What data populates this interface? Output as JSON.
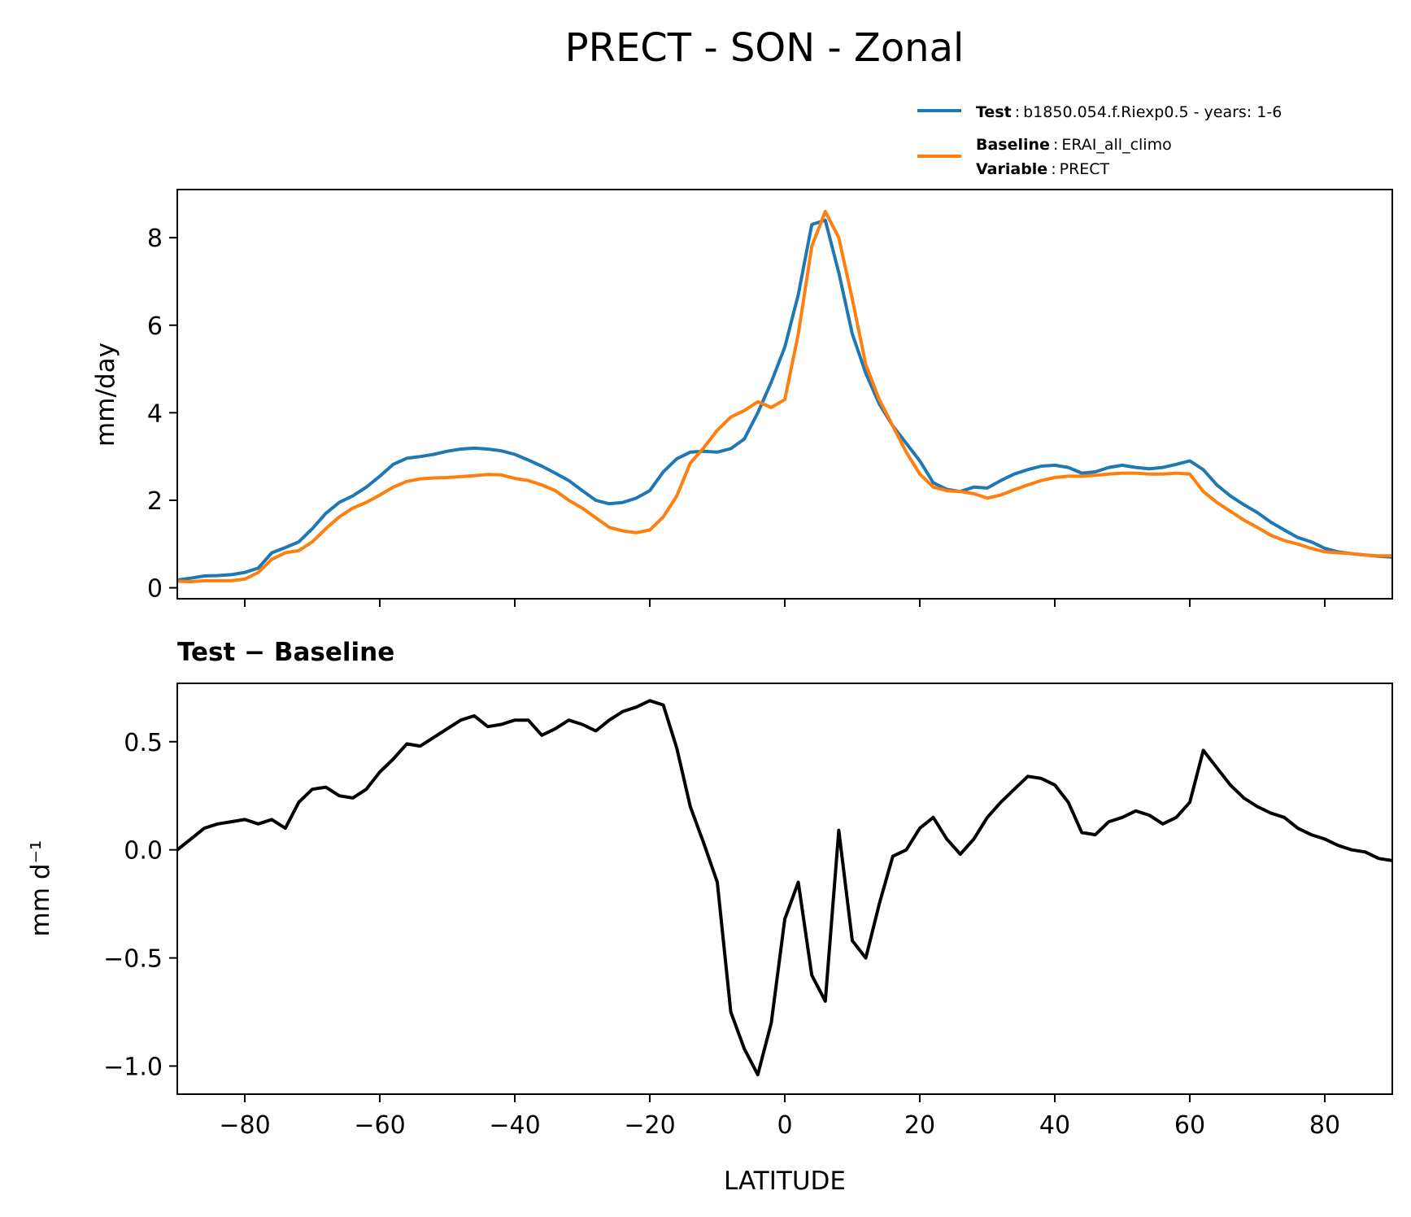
{
  "chart_data": [
    {
      "type": "line",
      "title": "PRECT - SON - Zonal",
      "ylabel": "mm/day",
      "xlim": [
        -90,
        90
      ],
      "ylim": [
        -0.25,
        9.1
      ],
      "yticks": [
        0,
        2,
        4,
        6,
        8
      ],
      "grid": false,
      "legend_position": "top-right, above plot",
      "legend": [
        {
          "series": "test",
          "bold": "Test",
          "text": "b1850.054.f.Riexp0.5 - years: 1-6"
        },
        {
          "series": "baseline",
          "bold": "Baseline",
          "text": "ERAI_all_climo"
        },
        {
          "series": null,
          "bold": "Variable",
          "text": "PRECT"
        }
      ],
      "series": [
        {
          "id": "test",
          "color": "#1f77b4",
          "x": [
            -90,
            -88,
            -86,
            -84,
            -82,
            -80,
            -78,
            -76,
            -74,
            -72,
            -70,
            -68,
            -66,
            -64,
            -62,
            -60,
            -58,
            -56,
            -54,
            -52,
            -50,
            -48,
            -46,
            -44,
            -42,
            -40,
            -38,
            -36,
            -34,
            -32,
            -30,
            -28,
            -26,
            -24,
            -22,
            -20,
            -18,
            -16,
            -14,
            -12,
            -10,
            -8,
            -6,
            -4,
            -2,
            0,
            2,
            4,
            6,
            8,
            10,
            12,
            14,
            16,
            18,
            20,
            22,
            24,
            26,
            28,
            30,
            32,
            34,
            36,
            38,
            40,
            42,
            44,
            46,
            48,
            50,
            52,
            54,
            56,
            58,
            60,
            62,
            64,
            66,
            68,
            70,
            72,
            74,
            76,
            78,
            80,
            82,
            84,
            86,
            88,
            90
          ],
          "values": [
            0.18,
            0.22,
            0.27,
            0.28,
            0.3,
            0.35,
            0.45,
            0.8,
            0.92,
            1.05,
            1.35,
            1.7,
            1.95,
            2.1,
            2.3,
            2.55,
            2.82,
            2.96,
            3.0,
            3.05,
            3.12,
            3.17,
            3.19,
            3.17,
            3.13,
            3.05,
            2.92,
            2.78,
            2.62,
            2.45,
            2.22,
            2.0,
            1.92,
            1.95,
            2.05,
            2.22,
            2.65,
            2.95,
            3.1,
            3.12,
            3.1,
            3.18,
            3.4,
            4.0,
            4.7,
            5.5,
            6.7,
            8.3,
            8.4,
            7.2,
            5.8,
            4.9,
            4.2,
            3.7,
            3.3,
            2.9,
            2.4,
            2.25,
            2.2,
            2.3,
            2.28,
            2.45,
            2.6,
            2.7,
            2.78,
            2.8,
            2.75,
            2.62,
            2.65,
            2.75,
            2.8,
            2.75,
            2.72,
            2.75,
            2.82,
            2.9,
            2.7,
            2.35,
            2.1,
            1.9,
            1.72,
            1.5,
            1.32,
            1.15,
            1.05,
            0.9,
            0.82,
            0.78,
            0.75,
            0.72,
            0.7
          ]
        },
        {
          "id": "baseline",
          "color": "#ff7f0e",
          "x": [
            -90,
            -88,
            -86,
            -84,
            -82,
            -80,
            -78,
            -76,
            -74,
            -72,
            -70,
            -68,
            -66,
            -64,
            -62,
            -60,
            -58,
            -56,
            -54,
            -52,
            -50,
            -48,
            -46,
            -44,
            -42,
            -40,
            -38,
            -36,
            -34,
            -32,
            -30,
            -28,
            -26,
            -24,
            -22,
            -20,
            -18,
            -16,
            -14,
            -12,
            -10,
            -8,
            -6,
            -4,
            -2,
            0,
            2,
            4,
            6,
            8,
            10,
            12,
            14,
            16,
            18,
            20,
            22,
            24,
            26,
            28,
            30,
            32,
            34,
            36,
            38,
            40,
            42,
            44,
            46,
            48,
            50,
            52,
            54,
            56,
            58,
            60,
            62,
            64,
            66,
            68,
            70,
            72,
            74,
            76,
            78,
            80,
            82,
            84,
            86,
            88,
            90
          ],
          "values": [
            0.15,
            0.14,
            0.16,
            0.16,
            0.16,
            0.2,
            0.35,
            0.65,
            0.8,
            0.85,
            1.05,
            1.35,
            1.62,
            1.82,
            1.95,
            2.12,
            2.3,
            2.43,
            2.49,
            2.51,
            2.52,
            2.54,
            2.56,
            2.59,
            2.58,
            2.5,
            2.45,
            2.35,
            2.22,
            2.0,
            1.82,
            1.6,
            1.38,
            1.3,
            1.26,
            1.32,
            1.62,
            2.1,
            2.85,
            3.2,
            3.6,
            3.9,
            4.05,
            4.25,
            4.12,
            4.3,
            5.8,
            7.8,
            8.6,
            8.0,
            6.6,
            5.1,
            4.3,
            3.7,
            3.1,
            2.6,
            2.3,
            2.22,
            2.2,
            2.15,
            2.05,
            2.12,
            2.24,
            2.35,
            2.45,
            2.52,
            2.55,
            2.55,
            2.57,
            2.6,
            2.62,
            2.62,
            2.6,
            2.6,
            2.62,
            2.6,
            2.2,
            1.95,
            1.75,
            1.55,
            1.38,
            1.2,
            1.08,
            1.0,
            0.9,
            0.82,
            0.8,
            0.78,
            0.75,
            0.73,
            0.73
          ]
        }
      ]
    },
    {
      "type": "line",
      "title": "Test − Baseline",
      "ylabel": "mm d⁻¹",
      "xlabel": "LATITUDE",
      "xlim": [
        -90,
        90
      ],
      "ylim": [
        -1.13,
        0.77
      ],
      "xticks": [
        -80,
        -60,
        -40,
        -20,
        0,
        20,
        40,
        60,
        80
      ],
      "yticks": [
        0.5,
        0.0,
        -0.5,
        -1.0
      ],
      "grid": false,
      "series": [
        {
          "id": "diff",
          "color": "#000000",
          "x": [
            -90,
            -88,
            -86,
            -84,
            -82,
            -80,
            -78,
            -76,
            -74,
            -72,
            -70,
            -68,
            -66,
            -64,
            -62,
            -60,
            -58,
            -56,
            -54,
            -52,
            -50,
            -48,
            -46,
            -44,
            -42,
            -40,
            -38,
            -36,
            -34,
            -32,
            -30,
            -28,
            -26,
            -24,
            -22,
            -20,
            -18,
            -16,
            -14,
            -12,
            -10,
            -8,
            -6,
            -4,
            -2,
            0,
            2,
            4,
            6,
            8,
            10,
            12,
            14,
            16,
            18,
            20,
            22,
            24,
            26,
            28,
            30,
            32,
            34,
            36,
            38,
            40,
            42,
            44,
            46,
            48,
            50,
            52,
            54,
            56,
            58,
            60,
            62,
            64,
            66,
            68,
            70,
            72,
            74,
            76,
            78,
            80,
            82,
            84,
            86,
            88,
            90
          ],
          "values": [
            0.0,
            0.05,
            0.1,
            0.12,
            0.13,
            0.14,
            0.12,
            0.14,
            0.1,
            0.22,
            0.28,
            0.29,
            0.25,
            0.24,
            0.28,
            0.36,
            0.42,
            0.49,
            0.48,
            0.52,
            0.56,
            0.6,
            0.62,
            0.57,
            0.58,
            0.6,
            0.6,
            0.53,
            0.56,
            0.6,
            0.58,
            0.55,
            0.6,
            0.64,
            0.66,
            0.69,
            0.67,
            0.47,
            0.2,
            0.03,
            -0.15,
            -0.75,
            -0.92,
            -1.04,
            -0.8,
            -0.32,
            -0.15,
            -0.58,
            -0.7,
            0.09,
            -0.42,
            -0.5,
            -0.25,
            -0.03,
            0.0,
            0.1,
            0.15,
            0.05,
            -0.02,
            0.05,
            0.15,
            0.22,
            0.28,
            0.34,
            0.33,
            0.3,
            0.22,
            0.08,
            0.07,
            0.13,
            0.15,
            0.18,
            0.16,
            0.12,
            0.15,
            0.22,
            0.46,
            0.38,
            0.3,
            0.24,
            0.2,
            0.17,
            0.15,
            0.1,
            0.07,
            0.05,
            0.02,
            0.0,
            -0.01,
            -0.04,
            -0.05
          ]
        }
      ]
    }
  ]
}
